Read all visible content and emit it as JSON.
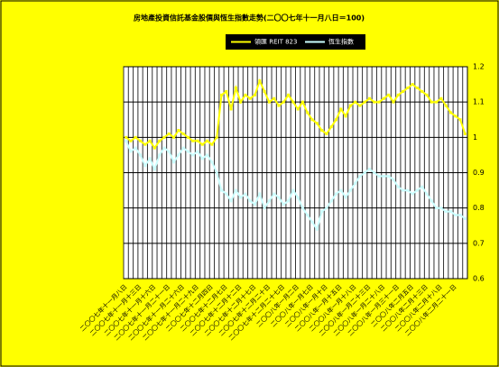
{
  "chart_data": {
    "type": "line",
    "title": "房地產投資信託基金股價與恆生指數走勢(二〇〇七年十一月八日＝100)",
    "categories": [
      "二〇〇七年十一月八日",
      null,
      null,
      "二〇〇七年十一月十三日",
      null,
      null,
      "二〇〇七年十一月十六日",
      null,
      null,
      "二〇〇七年十一月二十一日",
      null,
      null,
      "二〇〇七年十一月二十六日",
      null,
      null,
      "二〇〇七年十一月二十九日",
      null,
      null,
      "二〇〇七年十二月四日",
      null,
      null,
      "二〇〇七年十二月七日",
      null,
      null,
      "二〇〇七年十二月十二日",
      null,
      null,
      "二〇〇七年十二月十七日",
      null,
      null,
      "二〇〇七年十二月二十日",
      null,
      null,
      "二〇〇七年十二月二十七日",
      null,
      null,
      "二〇〇八年一月二日",
      null,
      null,
      "二〇〇八年一月七日",
      null,
      null,
      "二〇〇八年一月十日",
      null,
      null,
      "二〇〇八年一月十五日",
      null,
      null,
      "二〇〇八年一月十八日",
      null,
      null,
      "二〇〇八年一月二十三日",
      null,
      null,
      "二〇〇八年一月二十八日",
      null,
      null,
      "二〇〇八年一月三十一日",
      null,
      null,
      "二〇〇八年二月五日",
      null,
      null,
      "二〇〇八年二月十三日",
      null,
      null,
      "二〇〇八年二月十八日",
      null,
      null,
      "二〇〇八年二月二十一日",
      null,
      null
    ],
    "series": [
      {
        "name": "領匯 REIT 823",
        "color": "#ffff00",
        "values": [
          1.0,
          0.99,
          1.0,
          0.99,
          0.98,
          0.99,
          0.97,
          0.99,
          1.0,
          1.01,
          1.0,
          1.02,
          1.01,
          1.0,
          0.99,
          0.99,
          0.98,
          0.99,
          0.98,
          1.0,
          1.12,
          1.13,
          1.08,
          1.14,
          1.1,
          1.12,
          1.11,
          1.12,
          1.16,
          1.13,
          1.1,
          1.11,
          1.09,
          1.1,
          1.12,
          1.1,
          1.08,
          1.1,
          1.07,
          1.05,
          1.04,
          1.02,
          1.01,
          1.03,
          1.05,
          1.08,
          1.06,
          1.09,
          1.1,
          1.09,
          1.1,
          1.11,
          1.1,
          1.1,
          1.11,
          1.12,
          1.1,
          1.12,
          1.13,
          1.14,
          1.15,
          1.14,
          1.13,
          1.12,
          1.1,
          1.1,
          1.11,
          1.09,
          1.07,
          1.06,
          1.05,
          1.01
        ]
      },
      {
        "name": "恆生指數",
        "color": "#ccffff",
        "values": [
          0.99,
          0.96,
          0.97,
          0.95,
          0.92,
          0.94,
          0.91,
          0.95,
          0.97,
          0.96,
          0.93,
          0.95,
          0.97,
          0.96,
          0.95,
          0.96,
          0.94,
          0.95,
          0.93,
          0.9,
          0.85,
          0.84,
          0.82,
          0.85,
          0.83,
          0.84,
          0.82,
          0.81,
          0.84,
          0.8,
          0.82,
          0.84,
          0.83,
          0.81,
          0.82,
          0.85,
          0.83,
          0.8,
          0.78,
          0.76,
          0.74,
          0.79,
          0.8,
          0.82,
          0.84,
          0.85,
          0.83,
          0.85,
          0.87,
          0.89,
          0.9,
          0.91,
          0.9,
          0.89,
          0.89,
          0.89,
          0.88,
          0.86,
          0.85,
          0.85,
          0.84,
          0.85,
          0.86,
          0.84,
          0.82,
          0.8,
          0.8,
          0.79,
          0.79,
          0.78,
          0.78,
          0.77
        ]
      }
    ],
    "ylim": [
      0.6,
      1.2
    ],
    "yticks": [
      0.6,
      0.7,
      0.8,
      0.9,
      1,
      1.1,
      1.2
    ],
    "grid": true
  }
}
